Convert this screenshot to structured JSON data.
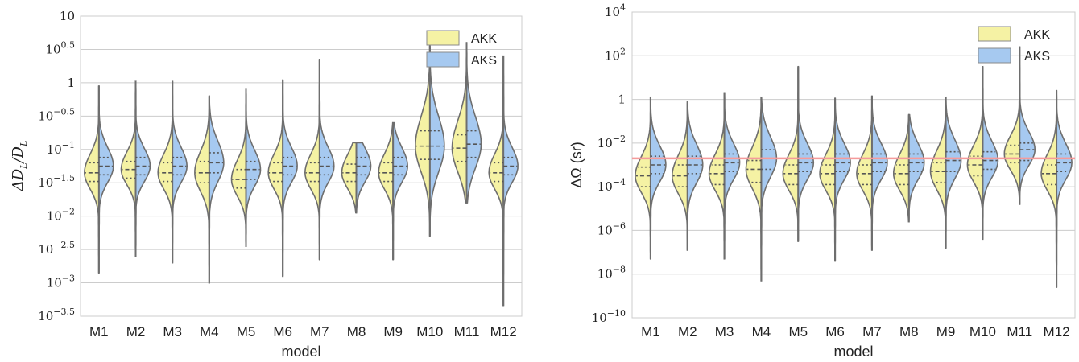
{
  "colors": {
    "akk": "#f5f2a4",
    "aks": "#a6c9f0",
    "outline": "#6e6e6e",
    "grid": "#cccccc",
    "threshold": "#f59b9b"
  },
  "chart_data": [
    {
      "type": "violin",
      "title": "",
      "xlabel": "model",
      "ylabel": "ΔD_L/D_L",
      "ylabel_parts": {
        "main": "ΔD",
        "sub1": "L",
        "slash": "/D",
        "sub2": "L"
      },
      "log_scale": true,
      "ylim_log10": [
        -3.5,
        1
      ],
      "grid": true,
      "legend": {
        "position": "top-right",
        "entries": [
          "AKK",
          "AKS"
        ]
      },
      "ticks": [
        {
          "v": 1,
          "base": "10",
          "exp": ""
        },
        {
          "v": 0.5,
          "base": "10",
          "exp": "0.5"
        },
        {
          "v": 0,
          "base": "1",
          "exp": ""
        },
        {
          "v": -0.5,
          "base": "10",
          "exp": "−0.5"
        },
        {
          "v": -1,
          "base": "10",
          "exp": "−1"
        },
        {
          "v": -1.5,
          "base": "10",
          "exp": "−1.5"
        },
        {
          "v": -2,
          "base": "10",
          "exp": "−2"
        },
        {
          "v": -2.5,
          "base": "10",
          "exp": "−2.5"
        },
        {
          "v": -3,
          "base": "10",
          "exp": "−3"
        },
        {
          "v": -3.5,
          "base": "10",
          "exp": "−3.5"
        }
      ],
      "categories": [
        "M1",
        "M2",
        "M3",
        "M4",
        "M5",
        "M6",
        "M7",
        "M8",
        "M9",
        "M10",
        "M11",
        "M12"
      ],
      "violins": [
        {
          "max": -0.05,
          "min": -2.85,
          "akk": {
            "median": -1.35,
            "q1": -1.48,
            "q3": -1.2
          },
          "aks": {
            "median": -1.25,
            "q1": -1.38,
            "q3": -1.12
          }
        },
        {
          "max": 0.02,
          "min": -2.6,
          "akk": {
            "median": -1.3,
            "q1": -1.43,
            "q3": -1.18
          },
          "aks": {
            "median": -1.25,
            "q1": -1.38,
            "q3": -1.12
          }
        },
        {
          "max": 0.02,
          "min": -2.7,
          "akk": {
            "median": -1.35,
            "q1": -1.48,
            "q3": -1.2
          },
          "aks": {
            "median": -1.25,
            "q1": -1.38,
            "q3": -1.12
          }
        },
        {
          "max": -0.2,
          "min": -3.0,
          "akk": {
            "median": -1.35,
            "q1": -1.5,
            "q3": -1.18
          },
          "aks": {
            "median": -1.2,
            "q1": -1.35,
            "q3": -1.05
          }
        },
        {
          "max": -0.1,
          "min": -2.45,
          "akk": {
            "median": -1.45,
            "q1": -1.58,
            "q3": -1.3
          },
          "aks": {
            "median": -1.3,
            "q1": -1.45,
            "q3": -1.18
          }
        },
        {
          "max": 0.04,
          "min": -2.9,
          "akk": {
            "median": -1.35,
            "q1": -1.48,
            "q3": -1.2
          },
          "aks": {
            "median": -1.25,
            "q1": -1.38,
            "q3": -1.12
          }
        },
        {
          "max": 0.35,
          "min": -2.65,
          "akk": {
            "median": -1.35,
            "q1": -1.48,
            "q3": -1.2
          },
          "aks": {
            "median": -1.25,
            "q1": -1.38,
            "q3": -1.12
          }
        },
        {
          "max": -0.9,
          "min": -1.95,
          "akk": {
            "median": -1.35,
            "q1": -1.48,
            "q3": -1.22
          },
          "aks": {
            "median": -1.25,
            "q1": -1.38,
            "q3": -1.12
          }
        },
        {
          "max": -0.6,
          "min": -2.65,
          "akk": {
            "median": -1.35,
            "q1": -1.48,
            "q3": -1.2
          },
          "aks": {
            "median": -1.25,
            "q1": -1.38,
            "q3": -1.12
          }
        },
        {
          "max": 0.55,
          "min": -2.3,
          "akk": {
            "median": -0.95,
            "q1": -1.15,
            "q3": -0.72
          },
          "aks": {
            "median": -0.95,
            "q1": -1.15,
            "q3": -0.72
          }
        },
        {
          "max": 0.6,
          "min": -1.8,
          "akk": {
            "median": -0.98,
            "q1": -1.18,
            "q3": -0.78
          },
          "aks": {
            "median": -0.92,
            "q1": -1.12,
            "q3": -0.72
          }
        },
        {
          "max": 0.4,
          "min": -3.35,
          "akk": {
            "median": -1.35,
            "q1": -1.48,
            "q3": -1.2
          },
          "aks": {
            "median": -1.25,
            "q1": -1.38,
            "q3": -1.12
          }
        }
      ]
    },
    {
      "type": "violin",
      "title": "",
      "xlabel": "model",
      "ylabel": "ΔΩ (sr)",
      "log_scale": true,
      "ylim_log10": [
        -10,
        4
      ],
      "grid": true,
      "legend": {
        "position": "top-right",
        "entries": [
          "AKK",
          "AKS"
        ]
      },
      "threshold_log10": -2.7,
      "ticks": [
        {
          "v": 4,
          "base": "10",
          "exp": "4"
        },
        {
          "v": 2,
          "base": "10",
          "exp": "2"
        },
        {
          "v": 0,
          "base": "1",
          "exp": ""
        },
        {
          "v": -2,
          "base": "10",
          "exp": "−2"
        },
        {
          "v": -4,
          "base": "10",
          "exp": "−4"
        },
        {
          "v": -6,
          "base": "10",
          "exp": "−6"
        },
        {
          "v": -8,
          "base": "10",
          "exp": "−8"
        },
        {
          "v": -10,
          "base": "10",
          "exp": "−10"
        }
      ],
      "categories": [
        "M1",
        "M2",
        "M3",
        "M4",
        "M5",
        "M6",
        "M7",
        "M8",
        "M9",
        "M10",
        "M11",
        "M12"
      ],
      "violins": [
        {
          "max": 0.1,
          "min": -7.3,
          "akk": {
            "median": -3.5,
            "q1": -4.0,
            "q3": -3.1
          },
          "aks": {
            "median": -3.0,
            "q1": -3.4,
            "q3": -2.6
          }
        },
        {
          "max": -0.1,
          "min": -6.9,
          "akk": {
            "median": -3.5,
            "q1": -4.0,
            "q3": -3.0
          },
          "aks": {
            "median": -3.0,
            "q1": -3.4,
            "q3": -2.6
          }
        },
        {
          "max": 0.3,
          "min": -7.3,
          "akk": {
            "median": -3.4,
            "q1": -3.9,
            "q3": -3.0
          },
          "aks": {
            "median": -2.9,
            "q1": -3.3,
            "q3": -2.5
          }
        },
        {
          "max": 0.1,
          "min": -8.3,
          "akk": {
            "median": -3.2,
            "q1": -3.8,
            "q3": -2.8
          },
          "aks": {
            "median": -2.7,
            "q1": -3.2,
            "q3": -2.3
          }
        },
        {
          "max": 1.5,
          "min": -6.5,
          "akk": {
            "median": -3.4,
            "q1": -3.9,
            "q3": -3.0
          },
          "aks": {
            "median": -2.9,
            "q1": -3.3,
            "q3": -2.5
          }
        },
        {
          "max": 0.05,
          "min": -7.4,
          "akk": {
            "median": -3.4,
            "q1": -3.9,
            "q3": -3.0
          },
          "aks": {
            "median": -2.9,
            "q1": -3.3,
            "q3": -2.5
          }
        },
        {
          "max": 0.15,
          "min": -6.9,
          "akk": {
            "median": -3.4,
            "q1": -3.9,
            "q3": -3.0
          },
          "aks": {
            "median": -2.9,
            "q1": -3.3,
            "q3": -2.5
          }
        },
        {
          "max": -0.7,
          "min": -5.6,
          "akk": {
            "median": -3.4,
            "q1": -3.9,
            "q3": -3.0
          },
          "aks": {
            "median": -2.9,
            "q1": -3.3,
            "q3": -2.5
          }
        },
        {
          "max": 0.1,
          "min": -6.8,
          "akk": {
            "median": -3.3,
            "q1": -3.8,
            "q3": -2.9
          },
          "aks": {
            "median": -2.8,
            "q1": -3.3,
            "q3": -2.4
          }
        },
        {
          "max": 1.5,
          "min": -6.4,
          "akk": {
            "median": -3.0,
            "q1": -3.5,
            "q3": -2.6
          },
          "aks": {
            "median": -2.8,
            "q1": -3.2,
            "q3": -2.4
          }
        },
        {
          "max": 2.4,
          "min": -4.8,
          "akk": {
            "median": -2.5,
            "q1": -2.9,
            "q3": -2.1
          },
          "aks": {
            "median": -2.3,
            "q1": -2.8,
            "q3": -2.0
          }
        },
        {
          "max": 0.4,
          "min": -8.6,
          "akk": {
            "median": -3.4,
            "q1": -3.9,
            "q3": -3.0
          },
          "aks": {
            "median": -2.9,
            "q1": -3.3,
            "q3": -2.5
          }
        }
      ]
    }
  ]
}
